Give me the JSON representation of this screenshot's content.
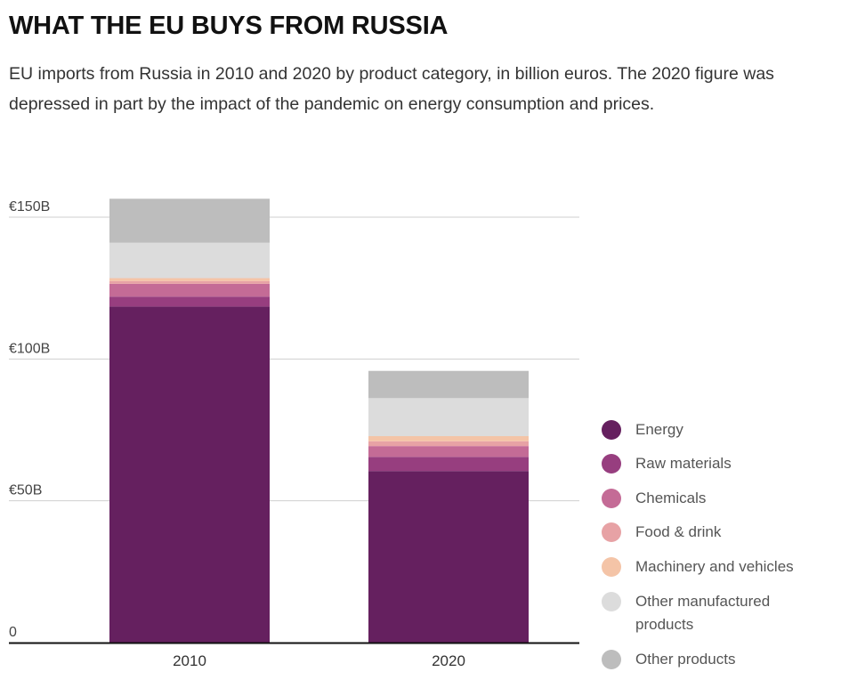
{
  "title": "WHAT THE EU BUYS FROM RUSSIA",
  "subtitle": "EU imports from Russia in 2010 and 2020 by product category, in billion euros. The 2020 figure was depressed in part by the impact of the pandemic on energy consumption and prices.",
  "chart_data": {
    "type": "bar",
    "stacked": true,
    "categories": [
      "2010",
      "2020"
    ],
    "y_ticks": [
      {
        "value": 0,
        "label": "0"
      },
      {
        "value": 50,
        "label": "€50B"
      },
      {
        "value": 100,
        "label": "€100B"
      },
      {
        "value": 150,
        "label": "€150B"
      }
    ],
    "ylim": [
      0,
      150
    ],
    "grid": true,
    "legend_position": "right",
    "series": [
      {
        "name": "Energy",
        "color": "#65205f",
        "values": [
          118.5,
          60.5
        ]
      },
      {
        "name": "Raw materials",
        "color": "#973e7f",
        "values": [
          3.5,
          5.0
        ]
      },
      {
        "name": "Chemicals",
        "color": "#c46b96",
        "values": [
          4.5,
          3.8
        ]
      },
      {
        "name": "Food & drink",
        "color": "#e7a2a5",
        "values": [
          1.0,
          1.7
        ]
      },
      {
        "name": "Machinery and vehicles",
        "color": "#f4c4a7",
        "values": [
          1.0,
          1.8
        ]
      },
      {
        "name": "Other manufactured products",
        "color": "#dcdcdc",
        "values": [
          12.5,
          13.4
        ]
      },
      {
        "name": "Other products",
        "color": "#bdbdbd",
        "values": [
          15.5,
          9.6
        ]
      }
    ]
  }
}
